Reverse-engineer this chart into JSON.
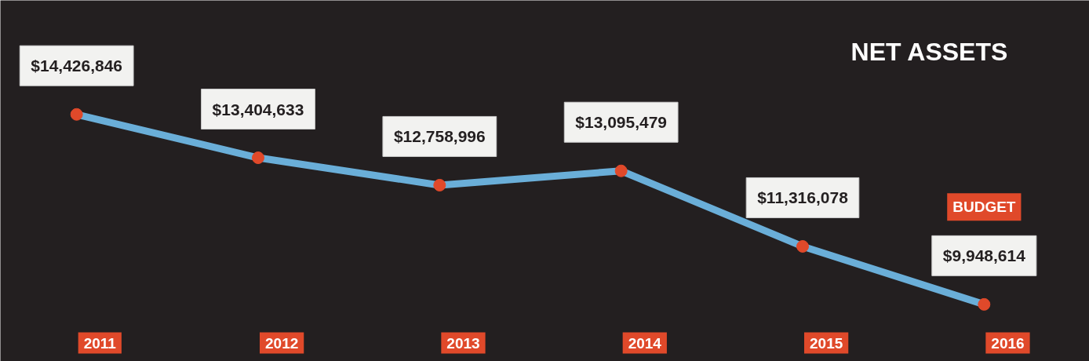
{
  "chart_data": {
    "type": "line",
    "title": "NET ASSETS",
    "categories": [
      "2011",
      "2012",
      "2013",
      "2014",
      "2015",
      "2016"
    ],
    "values": [
      14426846,
      13404633,
      12758996,
      13095479,
      11316078,
      9948614
    ],
    "value_labels": [
      "$14,426,846",
      "$13,404,633",
      "$12,758,996",
      "$13,095,479",
      "$11,316,078",
      "$9,948,614"
    ],
    "color": "#6aaed8",
    "colors": [
      "#e0492a",
      "#e0492a",
      "#e0492a",
      "#e0492a",
      "#e0492a",
      "#e0492a"
    ],
    "marker": "circle",
    "grid": false,
    "annotations": [
      "BUDGET"
    ]
  }
}
